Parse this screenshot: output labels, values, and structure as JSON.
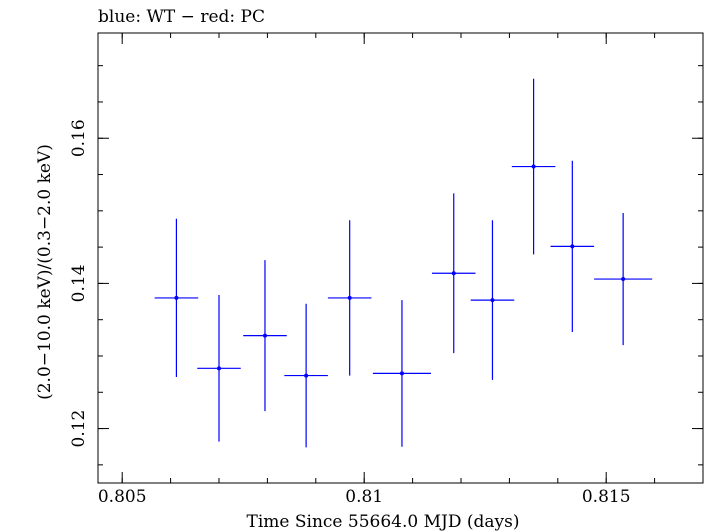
{
  "chart_data": {
    "type": "scatter",
    "title": "blue: WT − red: PC",
    "xlabel": "Time Since 55664.0 MJD (days)",
    "ylabel": "(2.0−10.0 keV)/(0.3−2.0 keV)",
    "xlim": [
      0.8045,
      0.817
    ],
    "ylim": [
      0.1125,
      0.1745
    ],
    "x_ticks": [
      {
        "value": 0.805,
        "label": "0.805"
      },
      {
        "value": 0.81,
        "label": "0.81"
      },
      {
        "value": 0.815,
        "label": "0.815"
      }
    ],
    "y_ticks": [
      {
        "value": 0.12,
        "label": "0.12"
      },
      {
        "value": 0.14,
        "label": "0.14"
      },
      {
        "value": 0.16,
        "label": "0.16"
      }
    ],
    "x_minor_step": 0.001,
    "y_minor_step": 0.005,
    "grid": false,
    "series": [
      {
        "color": "#0000ff",
        "points": [
          {
            "x": 0.80612,
            "xerr": 0.00045,
            "y": 0.138,
            "yerr": 0.0109
          },
          {
            "x": 0.807,
            "xerr": 0.00045,
            "y": 0.1283,
            "yerr": 0.0101
          },
          {
            "x": 0.80795,
            "xerr": 0.00045,
            "y": 0.1328,
            "yerr": 0.0104
          },
          {
            "x": 0.8088,
            "xerr": 0.00045,
            "y": 0.1273,
            "yerr": 0.0099
          },
          {
            "x": 0.8097,
            "xerr": 0.00045,
            "y": 0.138,
            "yerr": 0.0107
          },
          {
            "x": 0.81078,
            "xerr": 0.0006,
            "y": 0.1276,
            "yerr": 0.0101
          },
          {
            "x": 0.81185,
            "xerr": 0.00045,
            "y": 0.1414,
            "yerr": 0.011
          },
          {
            "x": 0.81265,
            "xerr": 0.00045,
            "y": 0.1377,
            "yerr": 0.011
          },
          {
            "x": 0.8135,
            "xerr": 0.00045,
            "y": 0.1561,
            "yerr": 0.0121
          },
          {
            "x": 0.8143,
            "xerr": 0.00045,
            "y": 0.1451,
            "yerr": 0.0118
          },
          {
            "x": 0.81535,
            "xerr": 0.0006,
            "y": 0.1406,
            "yerr": 0.0091
          }
        ]
      }
    ]
  }
}
